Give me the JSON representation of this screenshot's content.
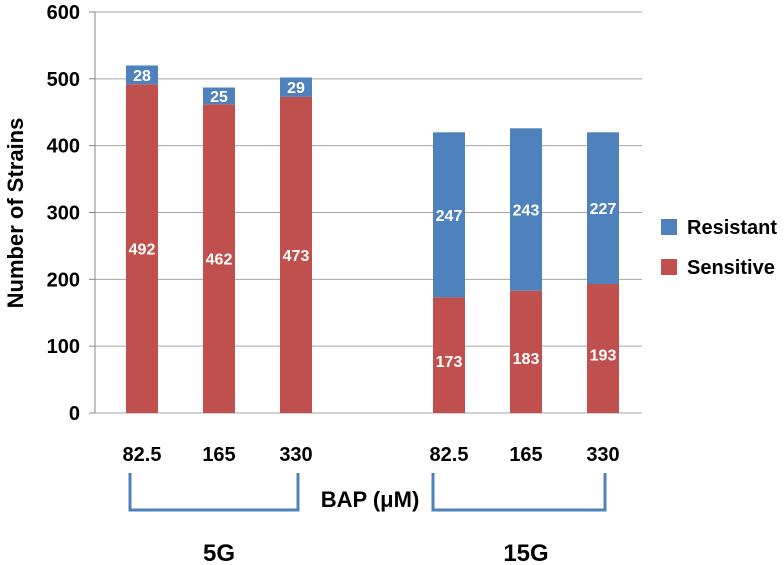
{
  "chart_data": {
    "type": "bar",
    "stacked": true,
    "ylabel": "Number of Strains",
    "xlabel": "BAP (μM)",
    "ylim": [
      0,
      600
    ],
    "yticks": [
      "0",
      "100",
      "200",
      "300",
      "400",
      "500",
      "600"
    ],
    "grid": true,
    "legend_position": "right",
    "categories": [
      "82.5",
      "165",
      "330",
      "82.5",
      "165",
      "330"
    ],
    "groups": [
      {
        "name": "5G",
        "categories": [
          0,
          1,
          2
        ]
      },
      {
        "name": "15G",
        "categories": [
          3,
          4,
          5
        ]
      }
    ],
    "series": [
      {
        "name": "Sensitive",
        "color": "#C0504D",
        "values": [
          492,
          462,
          473,
          173,
          183,
          193
        ]
      },
      {
        "name": "Resistant",
        "color": "#4F81BD",
        "values": [
          28,
          25,
          29,
          247,
          243,
          227
        ]
      }
    ],
    "legend": [
      "Resistant",
      "Sensitive"
    ]
  }
}
